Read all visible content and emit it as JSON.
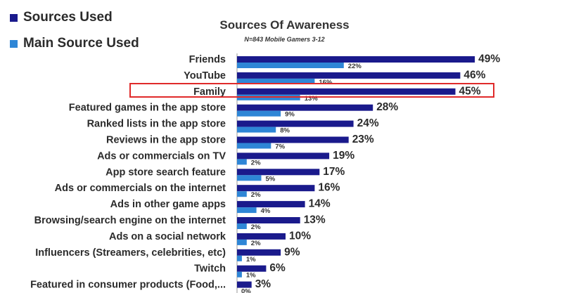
{
  "legend": {
    "sources_used": "Sources Used",
    "main_source_used": "Main Source Used"
  },
  "colors": {
    "sources_used": "#1a1a8c",
    "main_source_used": "#2e86d6",
    "highlight": "#e02a2a"
  },
  "chart_data": {
    "type": "bar",
    "orientation": "horizontal",
    "title": "Sources Of Awareness",
    "subtitle": "N=843 Mobile Gamers 3-12",
    "highlighted_category": "Family",
    "categories": [
      "Friends",
      "YouTube",
      "Family",
      "Featured games in the app store",
      "Ranked lists in the app store",
      "Reviews in the app store",
      "Ads or commercials on TV",
      "App store search feature",
      "Ads or commercials on the internet",
      "Ads in other game apps",
      "Browsing/search engine on the internet",
      "Ads on a social network",
      "Influencers (Streamers, celebrities, etc)",
      "Twitch",
      "Featured in consumer products (Food,..."
    ],
    "series": [
      {
        "name": "Sources Used",
        "values": [
          49,
          46,
          45,
          28,
          24,
          23,
          19,
          17,
          16,
          14,
          13,
          10,
          9,
          6,
          3
        ]
      },
      {
        "name": "Main Source Used",
        "values": [
          22,
          16,
          13,
          9,
          8,
          7,
          2,
          5,
          2,
          4,
          2,
          2,
          1,
          1,
          0
        ]
      }
    ],
    "value_suffix": "%",
    "xlim": [
      0,
      50
    ]
  }
}
